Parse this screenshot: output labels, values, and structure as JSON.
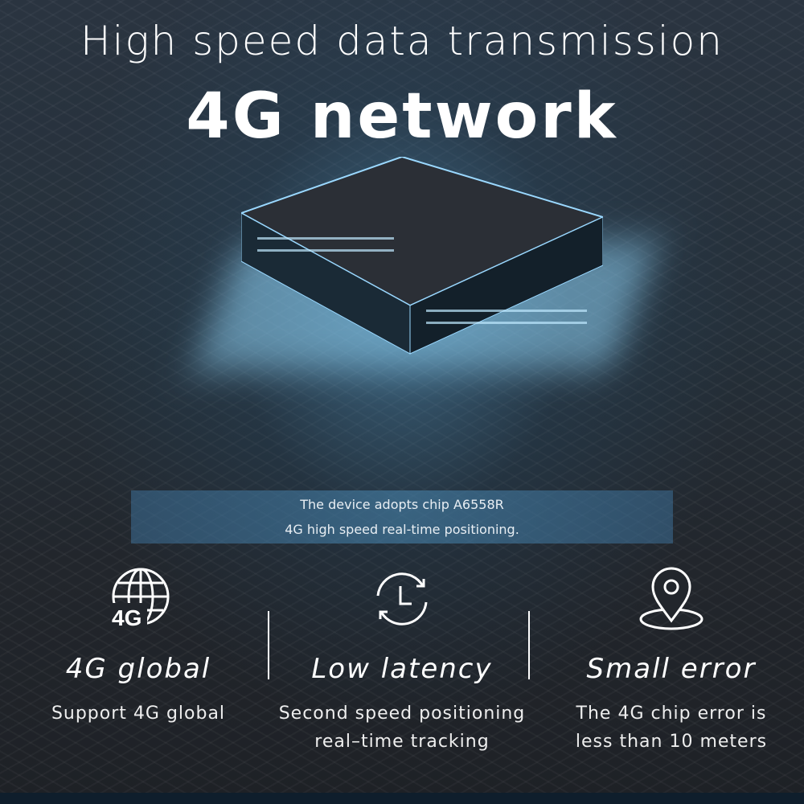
{
  "header": {
    "title": "High speed data transmission",
    "subtitle": "4G network"
  },
  "banner": {
    "line1": "The device adopts chip A6558R",
    "line2": "4G high speed real-time positioning."
  },
  "features": [
    {
      "icon": "globe-4g-icon",
      "icon_text": "4G",
      "title": "4G global",
      "desc": [
        "Support 4G global"
      ]
    },
    {
      "icon": "clock-refresh-icon",
      "title": "Low latency",
      "desc": [
        "Second speed positioning",
        "real–time tracking"
      ]
    },
    {
      "icon": "map-pin-icon",
      "title": "Small error",
      "desc": [
        "The 4G chip error is",
        "less than 10 meters"
      ]
    }
  ],
  "colors": {
    "accent": "#8fd6ff",
    "background": "#1d2127"
  }
}
